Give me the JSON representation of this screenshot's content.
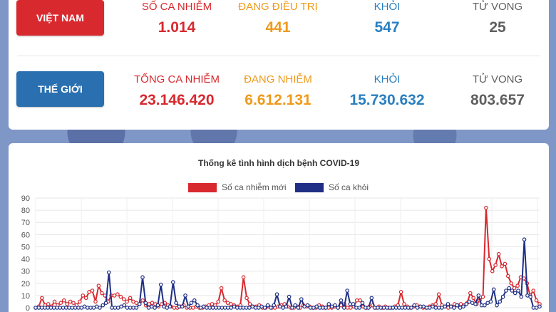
{
  "vietnam": {
    "label": "VIỆT NAM",
    "stats": [
      {
        "label": "SỐ CA NHIỄM",
        "value": "1.014"
      },
      {
        "label": "ĐANG ĐIỀU TRỊ",
        "value": "441"
      },
      {
        "label": "KHỎI",
        "value": "547"
      },
      {
        "label": "TỬ VONG",
        "value": "25"
      }
    ]
  },
  "world": {
    "label": "THẾ GIỚI",
    "stats": [
      {
        "label": "TỔNG CA NHIỄM",
        "value": "23.146.420"
      },
      {
        "label": "ĐANG NHIỄM",
        "value": "6.612.131"
      },
      {
        "label": "KHỎI",
        "value": "15.730.632"
      },
      {
        "label": "TỬ VONG",
        "value": "803.657"
      }
    ]
  },
  "colors": {
    "red": "#d8292f",
    "orange": "#ee9a1c",
    "blue": "#2a7fc0",
    "navy": "#1f2f85"
  },
  "chart_data": {
    "type": "line",
    "title": "Thống kê tình hình dịch bệnh COVID-19",
    "ylim": [
      0,
      90
    ],
    "yticks": [
      "0",
      "10",
      "20",
      "30",
      "40",
      "50",
      "60",
      "70",
      "80",
      "90"
    ],
    "grid": true,
    "legend_position": "top-center",
    "series": [
      {
        "name": "Số ca nhiễm mới",
        "color": "#d8292f",
        "values": [
          0,
          1,
          8,
          2,
          3,
          1,
          5,
          2,
          4,
          6,
          3,
          5,
          4,
          2,
          5,
          10,
          8,
          13,
          14,
          5,
          18,
          12,
          10,
          5,
          10,
          10,
          11,
          9,
          7,
          5,
          8,
          5,
          4,
          3,
          6,
          2,
          3,
          4,
          3,
          1,
          3,
          4,
          2,
          1,
          0,
          0,
          1,
          2,
          0,
          0,
          0,
          1,
          0,
          0,
          1,
          2,
          3,
          2,
          5,
          16,
          6,
          4,
          3,
          2,
          1,
          2,
          25,
          8,
          3,
          1,
          1,
          2,
          0,
          0,
          1,
          0,
          0,
          1,
          2,
          3,
          1,
          0,
          0,
          1,
          0,
          2,
          1,
          1,
          0,
          0,
          2,
          1,
          0,
          0,
          0,
          1,
          0,
          2,
          3,
          0,
          0,
          1,
          6,
          6,
          1,
          0,
          1,
          2,
          0,
          1,
          0,
          1,
          0,
          0,
          1,
          2,
          13,
          3,
          1,
          0,
          1,
          2,
          1,
          0,
          0,
          1,
          2,
          3,
          11,
          2,
          1,
          0,
          1,
          3,
          2,
          3,
          2,
          4,
          12,
          8,
          3,
          6,
          9,
          82,
          40,
          30,
          35,
          44,
          34,
          36,
          26,
          20,
          16,
          18,
          25,
          24,
          20,
          10,
          14,
          6,
          3
        ]
      },
      {
        "name": "Số ca khỏi",
        "color": "#1f2f85",
        "values": [
          0,
          0,
          0,
          0,
          0,
          0,
          0,
          0,
          0,
          0,
          0,
          0,
          0,
          0,
          0,
          0,
          1,
          0,
          0,
          0,
          1,
          0,
          2,
          4,
          29,
          0,
          0,
          0,
          1,
          2,
          0,
          0,
          0,
          0,
          3,
          25,
          4,
          0,
          1,
          0,
          2,
          19,
          1,
          0,
          1,
          21,
          4,
          1,
          1,
          10,
          1,
          4,
          6,
          2,
          0,
          1,
          0,
          0,
          0,
          0,
          0,
          0,
          0,
          0,
          0,
          1,
          0,
          0,
          0,
          0,
          0,
          1,
          0,
          0,
          1,
          0,
          2,
          0,
          2,
          11,
          1,
          0,
          1,
          9,
          0,
          2,
          0,
          7,
          1,
          2,
          0,
          0,
          1,
          0,
          0,
          0,
          3,
          1,
          2,
          0,
          6,
          0,
          14,
          3,
          3,
          0,
          0,
          4,
          0,
          0,
          8,
          0,
          0,
          0,
          0,
          0,
          0,
          0,
          0,
          0,
          0,
          0,
          0,
          0,
          2,
          0,
          1,
          1,
          0,
          0,
          1,
          0,
          0,
          0,
          1,
          3,
          1,
          0,
          2,
          0,
          1,
          3,
          5,
          4,
          3,
          10,
          2,
          2,
          4,
          5,
          15,
          2,
          5,
          9,
          14,
          16,
          14,
          12,
          14,
          9,
          56,
          10,
          9,
          0,
          0,
          1
        ]
      }
    ]
  }
}
